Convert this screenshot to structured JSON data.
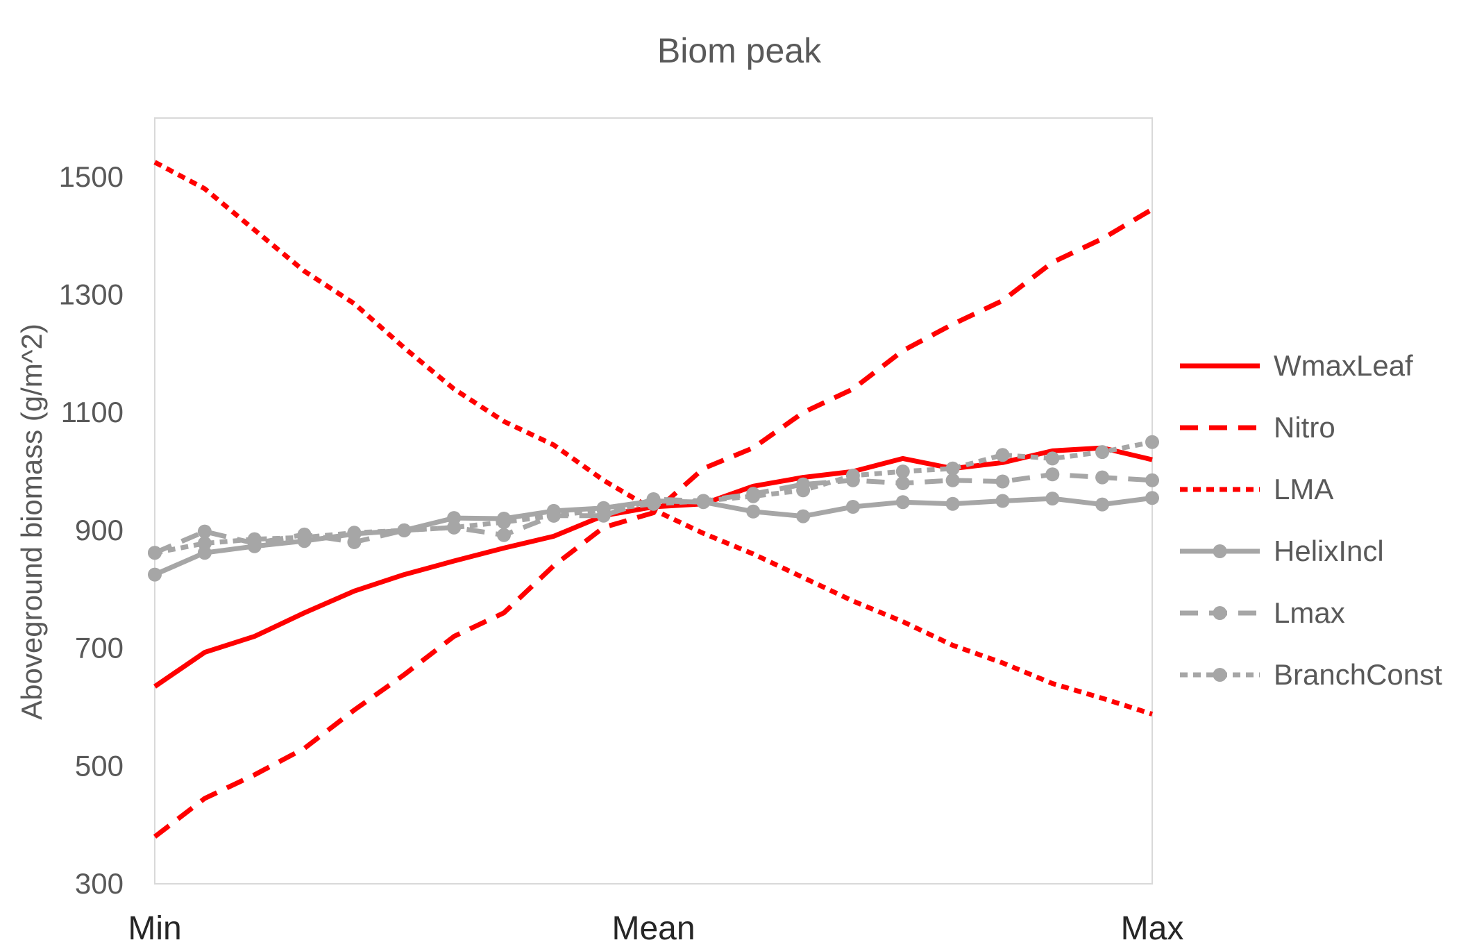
{
  "chart_data": {
    "type": "line",
    "title": "Biom peak",
    "xlabel": "",
    "ylabel": "Aboveground biomass (g/m^2)",
    "ylim": [
      300,
      1600
    ],
    "yticks": [
      300,
      500,
      700,
      900,
      1100,
      1300,
      1500
    ],
    "x_tick_labels": [
      "Min",
      "Mean",
      "Max"
    ],
    "x_tick_positions": [
      0,
      10,
      20
    ],
    "x": [
      0,
      1,
      2,
      3,
      4,
      5,
      6,
      7,
      8,
      9,
      10,
      11,
      12,
      13,
      14,
      15,
      16,
      17,
      18,
      19,
      20
    ],
    "grid": false,
    "legend_position": "right",
    "series": [
      {
        "name": "WmaxLeaf",
        "color": "#ff0000",
        "style": "solid",
        "markers": false,
        "values": [
          635,
          693,
          720,
          760,
          797,
          825,
          848,
          870,
          890,
          925,
          940,
          945,
          975,
          990,
          1000,
          1022,
          1005,
          1015,
          1035,
          1040,
          1020
        ]
      },
      {
        "name": "Nitro",
        "color": "#ff0000",
        "style": "dash",
        "markers": false,
        "values": [
          380,
          445,
          485,
          530,
          595,
          655,
          720,
          760,
          840,
          905,
          930,
          1005,
          1040,
          1100,
          1140,
          1205,
          1250,
          1290,
          1355,
          1395,
          1445
        ]
      },
      {
        "name": "LMA",
        "color": "#ff0000",
        "style": "dot",
        "markers": false,
        "values": [
          1525,
          1480,
          1410,
          1340,
          1285,
          1210,
          1140,
          1085,
          1045,
          985,
          935,
          895,
          860,
          820,
          780,
          745,
          705,
          675,
          640,
          615,
          588
        ]
      },
      {
        "name": "HelixIncl",
        "color": "#a6a6a6",
        "style": "solid",
        "markers": true,
        "values": [
          825,
          862,
          873,
          882,
          894,
          900,
          921,
          920,
          933,
          938,
          950,
          948,
          932,
          924,
          940,
          948,
          945,
          950,
          954,
          944,
          955
        ]
      },
      {
        "name": "Lmax",
        "color": "#a6a6a6",
        "style": "dash",
        "markers": true,
        "values": [
          862,
          898,
          878,
          893,
          880,
          900,
          905,
          892,
          925,
          925,
          953,
          950,
          962,
          978,
          985,
          980,
          985,
          983,
          995,
          990,
          985
        ]
      },
      {
        "name": "BranchConst",
        "color": "#a6a6a6",
        "style": "dot",
        "markers": true,
        "values": [
          862,
          878,
          885,
          888,
          896,
          900,
          905,
          914,
          925,
          935,
          945,
          950,
          958,
          968,
          993,
          1000,
          1005,
          1028,
          1022,
          1033,
          1050
        ]
      }
    ]
  }
}
